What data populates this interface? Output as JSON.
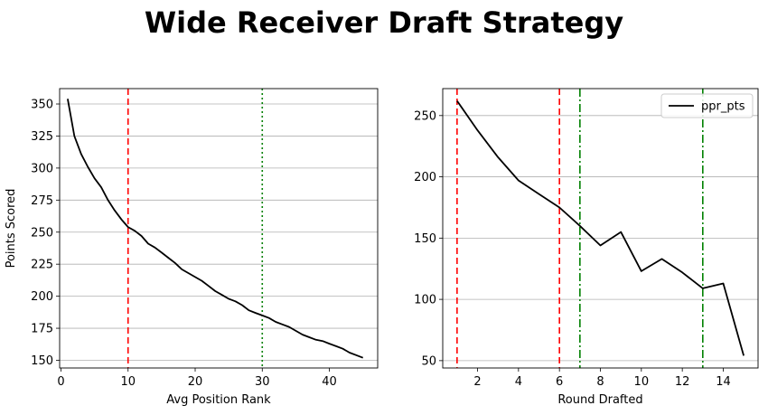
{
  "figure": {
    "title": "Wide Receiver Draft Strategy"
  },
  "chart_data": [
    {
      "type": "line",
      "xlabel": "Avg Position Rank",
      "ylabel": "Points Scored",
      "xlim": [
        -0.2,
        47.2
      ],
      "ylim": [
        144,
        362
      ],
      "xticks": [
        0,
        10,
        20,
        30,
        40
      ],
      "yticks": [
        150,
        175,
        200,
        225,
        250,
        275,
        300,
        325,
        350
      ],
      "grid": "y",
      "legend": "none",
      "series": [
        {
          "color": "#000000",
          "x": [
            1,
            2,
            3,
            4,
            5,
            6,
            7,
            8,
            9,
            10,
            11,
            12,
            13,
            14,
            15,
            16,
            17,
            18,
            19,
            20,
            21,
            22,
            23,
            24,
            25,
            26,
            27,
            28,
            29,
            30,
            31,
            32,
            33,
            34,
            35,
            36,
            37,
            38,
            39,
            40,
            41,
            42,
            43,
            44,
            45
          ],
          "y": [
            354,
            325,
            311,
            301,
            292,
            285,
            275,
            267,
            260,
            254,
            251,
            247,
            241,
            238,
            234,
            230,
            226,
            221,
            218,
            215,
            212,
            208,
            204,
            201,
            198,
            196,
            193,
            189,
            187,
            185,
            183,
            180,
            178,
            176,
            173,
            170,
            168,
            166,
            165,
            163,
            161,
            159,
            156,
            154,
            152
          ]
        }
      ],
      "vlines": [
        {
          "x": 10,
          "color": "#ff0000",
          "style": "dashed"
        },
        {
          "x": 30,
          "color": "#008000",
          "style": "dotted"
        }
      ]
    },
    {
      "type": "line",
      "xlabel": "Round Drafted",
      "ylabel": "",
      "xlim": [
        0.3,
        15.7
      ],
      "ylim": [
        44,
        272
      ],
      "xticks": [
        2,
        4,
        6,
        8,
        10,
        12,
        14
      ],
      "yticks": [
        50,
        100,
        150,
        200,
        250
      ],
      "grid": "y",
      "legend": "top-right",
      "series": [
        {
          "name": "ppr_pts",
          "color": "#000000",
          "x": [
            1,
            2,
            3,
            4,
            5,
            6,
            7,
            8,
            9,
            10,
            11,
            12,
            13,
            14,
            15
          ],
          "y": [
            262,
            238,
            216,
            197,
            186,
            175,
            160,
            144,
            155,
            123,
            133,
            122,
            109,
            113,
            54
          ]
        }
      ],
      "vlines": [
        {
          "x": 1,
          "color": "#ff0000",
          "style": "dashed"
        },
        {
          "x": 6,
          "color": "#ff0000",
          "style": "dashed"
        },
        {
          "x": 7,
          "color": "#008000",
          "style": "dashdot"
        },
        {
          "x": 13,
          "color": "#008000",
          "style": "dashdot"
        }
      ]
    }
  ]
}
